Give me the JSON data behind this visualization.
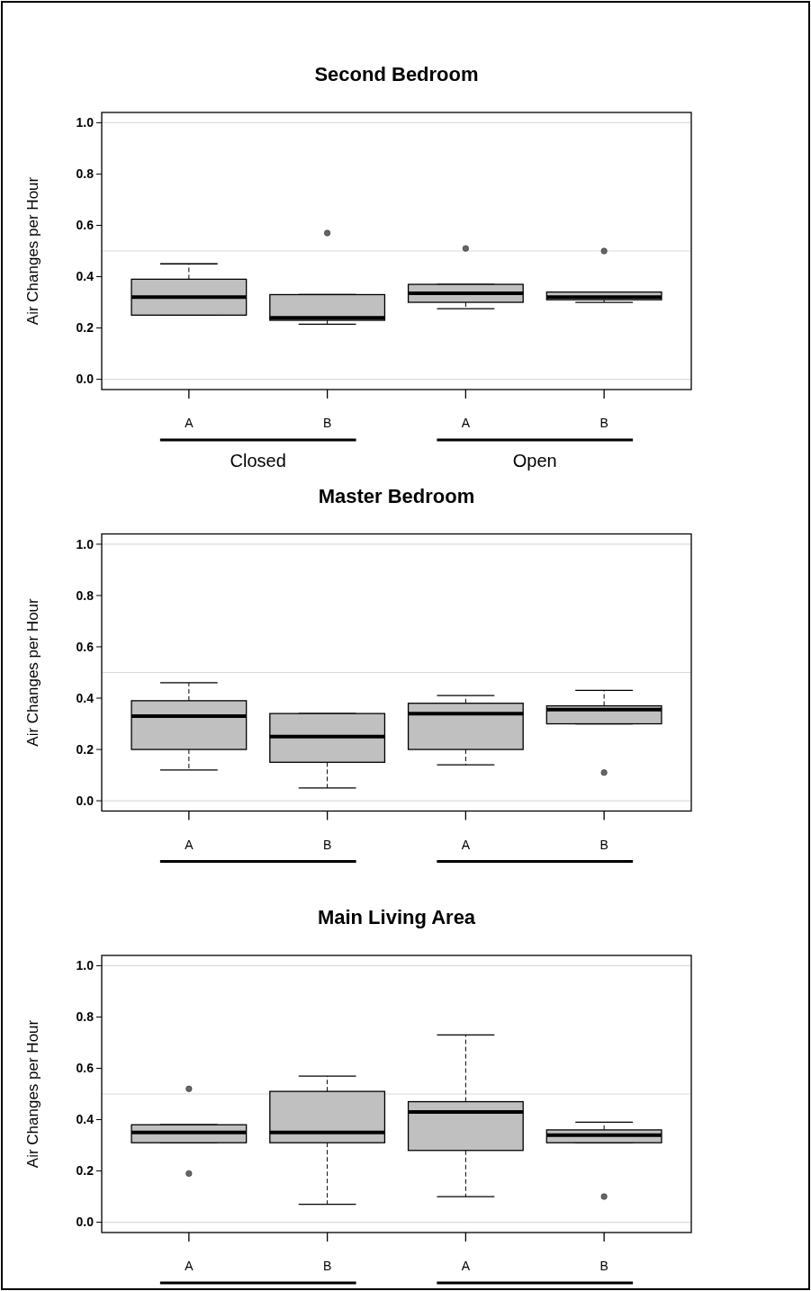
{
  "chart_data": [
    {
      "type": "box",
      "title": "Second Bedroom",
      "ylabel": "Air Changes per Hour",
      "categories": [
        "A",
        "B",
        "A",
        "B"
      ],
      "annotations": [
        "Closed",
        "Open"
      ],
      "color": "#c0c0c0",
      "ylim": [
        -0.04,
        1.04
      ],
      "yticks": [
        {
          "value": 0,
          "label": "0.0"
        },
        {
          "value": 0.2,
          "label": "0.2"
        },
        {
          "value": 0.4,
          "label": "0.4"
        },
        {
          "value": 0.6,
          "label": "0.6"
        },
        {
          "value": 0.8,
          "label": "0.8"
        },
        {
          "value": 1,
          "label": "1.0"
        }
      ],
      "ref_lines": [
        {
          "axis": "y",
          "value": 0,
          "color": "#d9d9d9"
        },
        {
          "axis": "y",
          "value": 0.5,
          "color": "#d9d9d9"
        },
        {
          "axis": "y",
          "value": 1,
          "color": "#d9d9d9"
        }
      ],
      "boxes": [
        {
          "low": 0.25,
          "q1": 0.25,
          "median": 0.32,
          "q3": 0.39,
          "high": 0.45
        },
        {
          "low": 0.215,
          "q1": 0.23,
          "median": 0.24,
          "q3": 0.33,
          "high": 0.33,
          "outliers": [
            0.57
          ]
        },
        {
          "low": 0.275,
          "q1": 0.3,
          "median": 0.335,
          "q3": 0.37,
          "high": 0.37,
          "outliers": [
            0.51
          ]
        },
        {
          "low": 0.3,
          "q1": 0.31,
          "median": 0.32,
          "q3": 0.34,
          "high": 0.34,
          "outliers": [
            0.5
          ]
        }
      ]
    },
    {
      "type": "box",
      "title": "Master Bedroom",
      "ylabel": "Air Changes per Hour",
      "categories": [
        "A",
        "B",
        "A",
        "B"
      ],
      "color": "#c0c0c0",
      "ylim": [
        -0.04,
        1.04
      ],
      "yticks": [
        {
          "value": 0,
          "label": "0.0"
        },
        {
          "value": 0.2,
          "label": "0.2"
        },
        {
          "value": 0.4,
          "label": "0.4"
        },
        {
          "value": 0.6,
          "label": "0.6"
        },
        {
          "value": 0.8,
          "label": "0.8"
        },
        {
          "value": 1,
          "label": "1.0"
        }
      ],
      "ref_lines": [
        {
          "axis": "y",
          "value": 0,
          "color": "#d9d9d9"
        },
        {
          "axis": "y",
          "value": 0.5,
          "color": "#d9d9d9"
        },
        {
          "axis": "y",
          "value": 1,
          "color": "#d9d9d9"
        }
      ],
      "boxes": [
        {
          "low": 0.12,
          "q1": 0.2,
          "median": 0.33,
          "q3": 0.39,
          "high": 0.46
        },
        {
          "low": 0.05,
          "q1": 0.15,
          "median": 0.25,
          "q3": 0.34,
          "high": 0.34
        },
        {
          "low": 0.14,
          "q1": 0.2,
          "median": 0.34,
          "q3": 0.38,
          "high": 0.41
        },
        {
          "low": 0.3,
          "q1": 0.3,
          "median": 0.355,
          "q3": 0.37,
          "high": 0.43,
          "outliers": [
            0.11
          ]
        }
      ]
    },
    {
      "type": "box",
      "title": "Main Living Area",
      "ylabel": "Air Changes per Hour",
      "categories": [
        "A",
        "B",
        "A",
        "B"
      ],
      "color": "#c0c0c0",
      "ylim": [
        -0.04,
        1.04
      ],
      "yticks": [
        {
          "value": 0,
          "label": "0.0"
        },
        {
          "value": 0.2,
          "label": "0.2"
        },
        {
          "value": 0.4,
          "label": "0.4"
        },
        {
          "value": 0.6,
          "label": "0.6"
        },
        {
          "value": 0.8,
          "label": "0.8"
        },
        {
          "value": 1,
          "label": "1.0"
        }
      ],
      "ref_lines": [
        {
          "axis": "y",
          "value": 0,
          "color": "#d9d9d9"
        },
        {
          "axis": "y",
          "value": 0.5,
          "color": "#d9d9d9"
        },
        {
          "axis": "y",
          "value": 1,
          "color": "#d9d9d9"
        }
      ],
      "boxes": [
        {
          "low": 0.31,
          "q1": 0.31,
          "median": 0.35,
          "q3": 0.38,
          "high": 0.38,
          "outliers": [
            0.52,
            0.19
          ]
        },
        {
          "low": 0.07,
          "q1": 0.31,
          "median": 0.35,
          "q3": 0.51,
          "high": 0.57
        },
        {
          "low": 0.1,
          "q1": 0.28,
          "median": 0.43,
          "q3": 0.47,
          "high": 0.73
        },
        {
          "low": 0.31,
          "q1": 0.31,
          "median": 0.34,
          "q3": 0.36,
          "high": 0.39,
          "outliers": [
            0.1
          ]
        }
      ]
    }
  ]
}
